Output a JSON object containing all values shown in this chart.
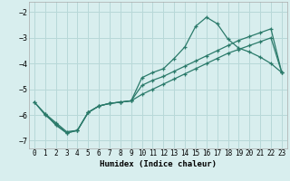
{
  "xlabel": "Humidex (Indice chaleur)",
  "background_color": "#d8eeee",
  "grid_color": "#b8d8d8",
  "line_color": "#2a7a6a",
  "xlim": [
    -0.5,
    23.5
  ],
  "ylim": [
    -7.3,
    -1.6
  ],
  "yticks": [
    -7,
    -6,
    -5,
    -4,
    -3,
    -2
  ],
  "xticks": [
    0,
    1,
    2,
    3,
    4,
    5,
    6,
    7,
    8,
    9,
    10,
    11,
    12,
    13,
    14,
    15,
    16,
    17,
    18,
    19,
    20,
    21,
    22,
    23
  ],
  "xA": [
    0,
    1,
    2,
    3,
    4,
    5,
    6,
    7,
    8,
    9,
    10,
    11,
    12,
    13,
    14,
    15,
    16,
    17,
    18,
    19,
    20,
    21,
    22,
    23
  ],
  "yA": [
    -5.5,
    -6.0,
    -6.35,
    -6.7,
    -6.6,
    -5.9,
    -5.65,
    -5.55,
    -5.5,
    -5.45,
    -4.55,
    -4.35,
    -4.2,
    -3.8,
    -3.35,
    -2.55,
    -2.2,
    -2.45,
    -3.05,
    -3.4,
    -3.55,
    -3.75,
    -4.0,
    -4.35
  ],
  "xB": [
    0,
    1,
    2,
    3,
    4,
    5,
    6,
    7,
    8,
    9,
    10,
    11,
    12,
    13,
    14,
    15,
    16,
    17,
    18,
    19,
    20,
    21,
    22,
    23
  ],
  "yB": [
    -5.5,
    -5.95,
    -6.3,
    -6.65,
    -6.6,
    -5.9,
    -5.65,
    -5.55,
    -5.5,
    -5.45,
    -4.85,
    -4.65,
    -4.5,
    -4.3,
    -4.1,
    -3.9,
    -3.7,
    -3.5,
    -3.3,
    -3.1,
    -2.95,
    -2.8,
    -2.65,
    -4.35
  ],
  "xC": [
    1,
    2,
    3,
    4,
    5,
    6,
    7,
    8,
    9,
    10,
    11,
    12,
    13,
    14,
    15,
    16,
    17,
    18,
    19,
    20,
    21,
    22,
    23
  ],
  "yC": [
    -5.95,
    -6.4,
    -6.7,
    -6.6,
    -5.9,
    -5.65,
    -5.55,
    -5.5,
    -5.45,
    -5.2,
    -5.0,
    -4.8,
    -4.6,
    -4.4,
    -4.2,
    -4.0,
    -3.8,
    -3.6,
    -3.45,
    -3.3,
    -3.15,
    -3.0,
    -4.35
  ],
  "font_family": "monospace",
  "tick_fontsize": 5.5,
  "ylabel_fontsize": 6.5,
  "xlabel_fontsize": 6.5
}
